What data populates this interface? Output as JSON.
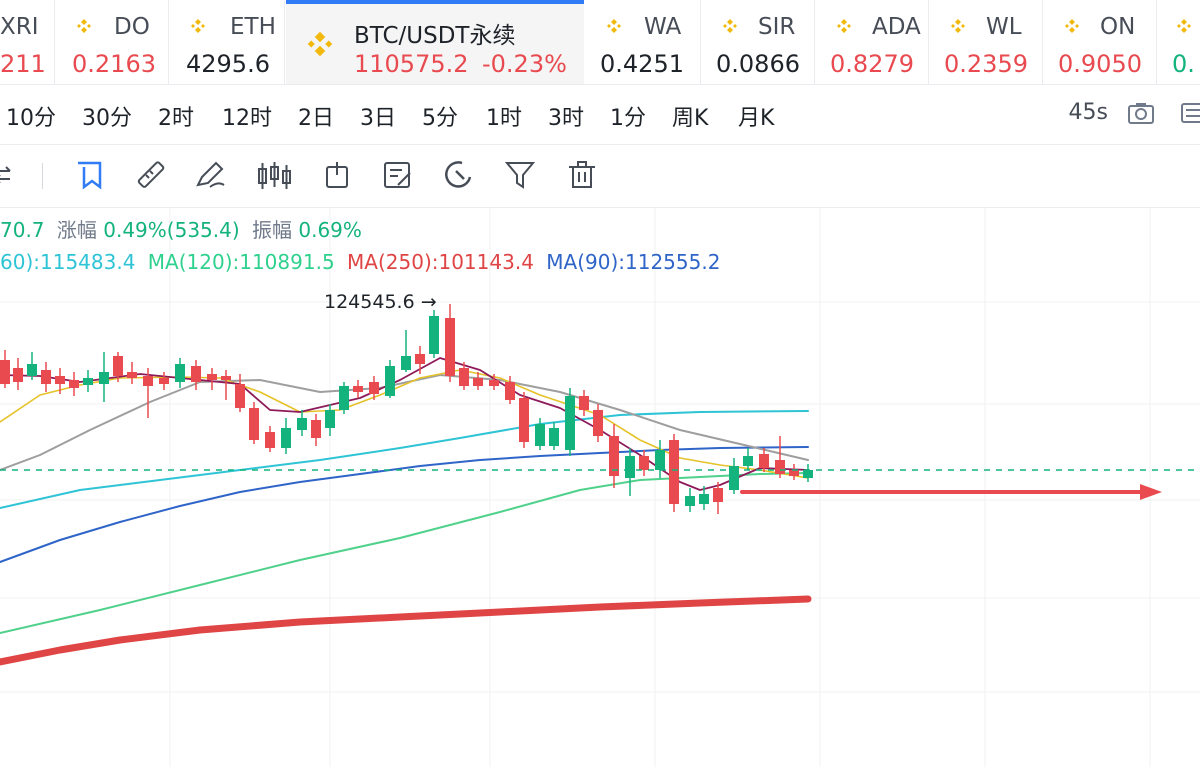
{
  "ticker": [
    {
      "symbol": "XRI",
      "price": "211",
      "price_color": "red"
    },
    {
      "symbol": "DO",
      "price": "0.2163",
      "price_color": "red"
    },
    {
      "symbol": "ETH",
      "price": "4295.6",
      "price_color": "dark"
    },
    {
      "symbol": "BTC/USDT永续",
      "price": "110575.2",
      "change": "-0.23%",
      "price_color": "red"
    },
    {
      "symbol": "WA",
      "price": "0.4251",
      "price_color": "dark"
    },
    {
      "symbol": "SIR",
      "price": "0.0866",
      "price_color": "dark"
    },
    {
      "symbol": "ADA",
      "price": "0.8279",
      "price_color": "red"
    },
    {
      "symbol": "WL",
      "price": "0.2359",
      "price_color": "red"
    },
    {
      "symbol": "ON",
      "price": "0.9050",
      "price_color": "red"
    },
    {
      "symbol": "",
      "price": "0.",
      "price_color": "green"
    }
  ],
  "intervals": [
    "10分",
    "30分",
    "2时",
    "12时",
    "2日",
    "3日",
    "5分",
    "1时",
    "3时",
    "1分",
    "周K",
    "月K"
  ],
  "refresh": "45s",
  "info": {
    "line1_value": "70.7",
    "change_label": "涨幅",
    "change_value": "0.49%(535.4)",
    "amp_label": "振幅",
    "amp_value": "0.69%",
    "ma60": "60):115483.4",
    "ma120": "MA(120):110891.5",
    "ma250": "MA(250):101143.4",
    "ma90": "MA(90):112555.2"
  },
  "chart_data": {
    "type": "candlestick",
    "high_annotation": "124545.6",
    "dashed_price_line": true,
    "arrow_direction": "right",
    "colors": {
      "up": "#14b37d",
      "down": "#e84a4f",
      "ma_short": "#8e1a5a",
      "ma_mid": "#e6c229",
      "ma_long": "#9e9e9e",
      "ma60": "#2ec4d6",
      "ma120": "#4fd18b",
      "ma90": "#2f64c8",
      "ma250": "#e04545"
    }
  }
}
